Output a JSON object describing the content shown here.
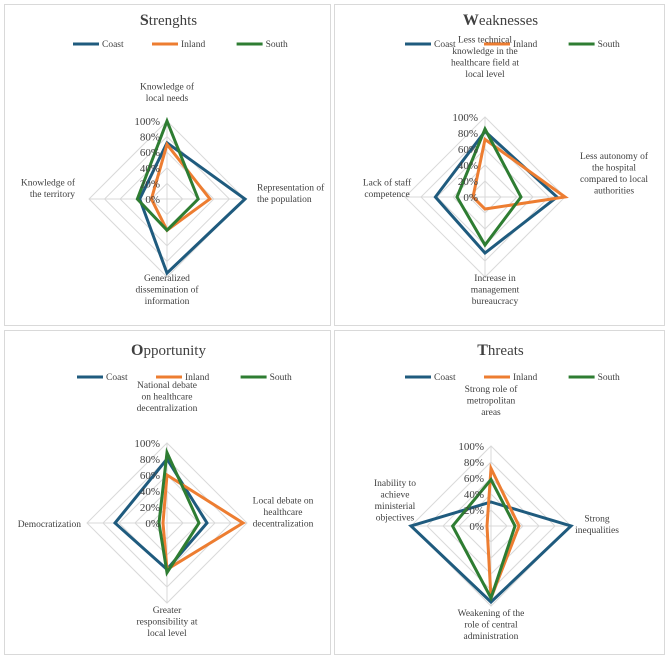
{
  "colors": {
    "Coast": "#1f5b7e",
    "Inland": "#ed7d31",
    "South": "#2e7d32",
    "grid": "#d9d9d9"
  },
  "chart_data": [
    {
      "type": "radar",
      "title": "Strenghts",
      "title_cap": "S",
      "title_rest": "trenghts",
      "legend": [
        "Coast",
        "Inland",
        "South"
      ],
      "ticks": [
        "100%",
        "80%",
        "60%",
        "40%",
        "20%",
        "0%"
      ],
      "axes": [
        {
          "lines": [
            "Knowledge of",
            "local needs"
          ]
        },
        {
          "lines": [
            "Representation of",
            "the population"
          ]
        },
        {
          "lines": [
            "Generalized",
            "dissemination of",
            "information"
          ]
        },
        {
          "lines": [
            "Knowledge of",
            "the territory"
          ]
        }
      ],
      "series": [
        {
          "name": "Coast",
          "values": [
            0.72,
            1.0,
            0.95,
            0.35
          ]
        },
        {
          "name": "Inland",
          "values": [
            0.7,
            0.55,
            0.4,
            0.2
          ]
        },
        {
          "name": "South",
          "values": [
            1.0,
            0.4,
            0.4,
            0.38
          ]
        }
      ]
    },
    {
      "type": "radar",
      "title": "Weaknesses",
      "title_cap": "W",
      "title_rest": "eaknesses",
      "legend": [
        "Coast",
        "Inland",
        "South"
      ],
      "ticks": [
        "100%",
        "80%",
        "60%",
        "40%",
        "20%",
        "0%"
      ],
      "axes": [
        {
          "lines": [
            "Less technical",
            "knowledge in the",
            "healthcare field at",
            "local level"
          ]
        },
        {
          "lines": [
            "Less autonomy of",
            "the hospital",
            "compared to local",
            "authorities"
          ]
        },
        {
          "lines": [
            "Increase in",
            "management",
            "bureaucracy"
          ]
        },
        {
          "lines": [
            "Lack of staff",
            "competence"
          ]
        }
      ],
      "series": [
        {
          "name": "Coast",
          "values": [
            0.82,
            0.9,
            0.7,
            0.62
          ]
        },
        {
          "name": "Inland",
          "values": [
            0.72,
            1.0,
            0.15,
            0.15
          ]
        },
        {
          "name": "South",
          "values": [
            0.85,
            0.45,
            0.6,
            0.35
          ]
        }
      ]
    },
    {
      "type": "radar",
      "title": "Opportunity",
      "title_cap": "O",
      "title_rest": "pportunity",
      "legend": [
        "Coast",
        "Inland",
        "South"
      ],
      "ticks": [
        "100%",
        "80%",
        "60%",
        "40%",
        "20%",
        "0%"
      ],
      "axes": [
        {
          "lines": [
            "National debate",
            "on healthcare",
            "decentralization"
          ]
        },
        {
          "lines": [
            "Local debate on",
            "healthcare",
            "decentralization"
          ]
        },
        {
          "lines": [
            "Greater",
            "responsibility at",
            "local level"
          ]
        },
        {
          "lines": [
            "Democratization"
          ]
        }
      ],
      "series": [
        {
          "name": "Coast",
          "values": [
            0.8,
            0.5,
            0.58,
            0.65
          ]
        },
        {
          "name": "Inland",
          "values": [
            0.6,
            0.95,
            0.58,
            0.05
          ]
        },
        {
          "name": "South",
          "values": [
            0.88,
            0.4,
            0.62,
            0.1
          ]
        }
      ]
    },
    {
      "type": "radar",
      "title": "Threats",
      "title_cap": "T",
      "title_rest": "hreats",
      "legend": [
        "Coast",
        "Inland",
        "South"
      ],
      "ticks": [
        "100%",
        "80%",
        "60%",
        "40%",
        "20%",
        "0%"
      ],
      "axes": [
        {
          "lines": [
            "Strong role of",
            "metropolitan",
            "areas"
          ]
        },
        {
          "lines": [
            "Strong",
            "inequalities"
          ]
        },
        {
          "lines": [
            "Weakening of the",
            "role of central",
            "administration"
          ]
        },
        {
          "lines": [
            "Inability to",
            "achieve",
            "ministerial",
            "objectives"
          ]
        }
      ],
      "series": [
        {
          "name": "Coast",
          "values": [
            0.3,
            1.0,
            0.95,
            1.0
          ]
        },
        {
          "name": "Inland",
          "values": [
            0.72,
            0.35,
            0.9,
            0.05
          ]
        },
        {
          "name": "South",
          "values": [
            0.58,
            0.3,
            0.9,
            0.48
          ]
        }
      ]
    }
  ]
}
